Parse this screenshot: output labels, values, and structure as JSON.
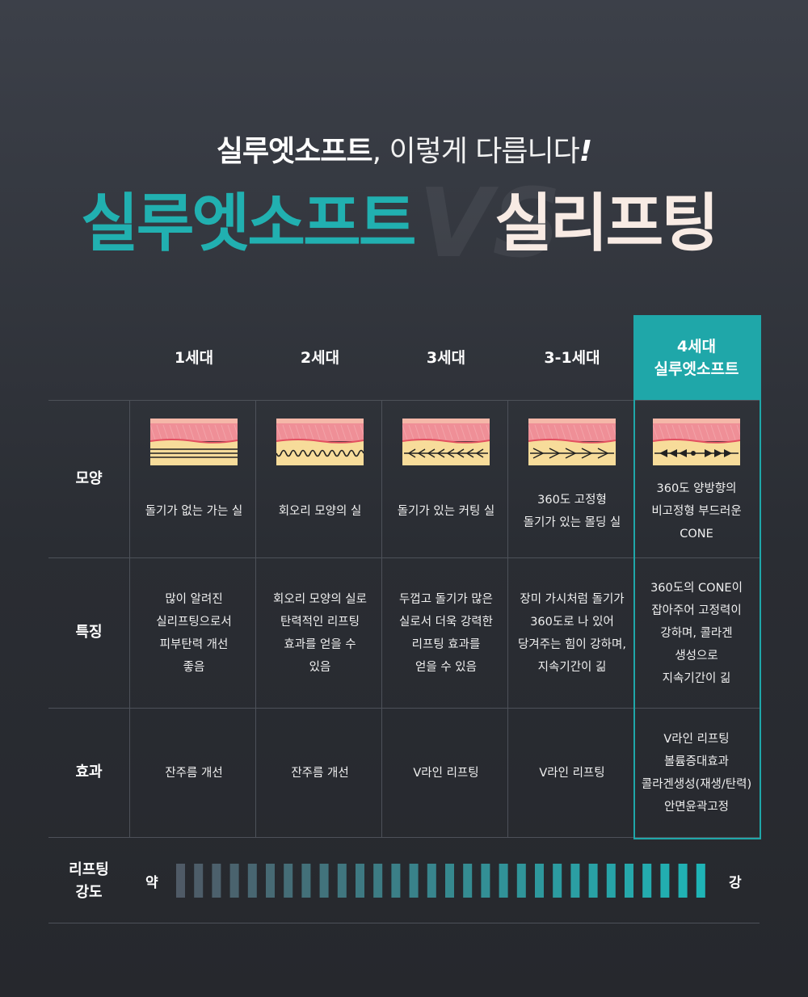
{
  "header": {
    "subtitle_bold": "실루엣소프트",
    "subtitle_light": ", 이렇게 다릅니다",
    "subtitle_excl": "!",
    "left_title": "실루엣소프트",
    "vs": "VS",
    "right_title": "실리프팅"
  },
  "columns": [
    {
      "title": "1세대",
      "subtitle": ""
    },
    {
      "title": "2세대",
      "subtitle": ""
    },
    {
      "title": "3세대",
      "subtitle": ""
    },
    {
      "title": "3-1세대",
      "subtitle": ""
    },
    {
      "title": "4세대",
      "subtitle": "실루엣소프트"
    }
  ],
  "rows": {
    "shape": {
      "label": "모양",
      "cells": [
        {
          "lines": [
            "돌기가 없는 가는 실"
          ],
          "thread": "straight-thread-icon"
        },
        {
          "lines": [
            "회오리 모양의 실"
          ],
          "thread": "wavy-thread-icon"
        },
        {
          "lines": [
            "돌기가 있는 커팅 실"
          ],
          "thread": "barbed-thread-icon"
        },
        {
          "lines": [
            "360도 고정형",
            "돌기가 있는 몰딩 실"
          ],
          "thread": "molded-thread-icon"
        },
        {
          "lines": [
            "360도 양방향의",
            "비고정형 부드러운",
            "CONE"
          ],
          "thread": "cone-thread-icon"
        }
      ]
    },
    "feature": {
      "label": "특징",
      "cells": [
        {
          "lines": [
            "많이 알려진",
            "실리프팅으로서",
            "피부탄력 개선",
            "좋음"
          ]
        },
        {
          "lines": [
            "회오리 모양의 실로",
            "탄력적인 리프팅",
            "효과를 얻을 수",
            "있음"
          ]
        },
        {
          "lines": [
            "두껍고 돌기가 많은",
            "실로서 더욱 강력한",
            "리프팅 효과를",
            "얻을 수 있음"
          ]
        },
        {
          "lines": [
            "장미 가시처럼 돌기가",
            "360도로 나 있어",
            "당겨주는 힘이 강하며,",
            "지속기간이 긺"
          ]
        },
        {
          "lines": [
            "360도의 CONE이",
            "잡아주어 고정력이",
            "강하며, 콜라겐",
            "생성으로",
            "지속기간이 긺"
          ]
        }
      ]
    },
    "effect": {
      "label": "효과",
      "cells": [
        {
          "lines": [
            "잔주름 개선"
          ]
        },
        {
          "lines": [
            "잔주름 개선"
          ]
        },
        {
          "lines": [
            "V라인 리프팅"
          ]
        },
        {
          "lines": [
            "V라인 리프팅"
          ]
        },
        {
          "lines": [
            "V라인 리프팅",
            "볼륨증대효과",
            "콜라겐생성(재생/탄력)",
            "안면윤곽고정"
          ]
        }
      ]
    }
  },
  "intensity": {
    "label_lines": [
      "리프팅",
      "강도"
    ],
    "weak": "약",
    "strong": "강",
    "segments": 30,
    "start_color": "#4f5a66",
    "end_color": "#1fb4b6"
  },
  "colors": {
    "accent": "#1fa7a9",
    "title_teal": "#21b0b0",
    "title_cream": "#f8ebe4",
    "skin_pink": "#ef8f97",
    "fat_yellow": "#f7dc9a"
  }
}
